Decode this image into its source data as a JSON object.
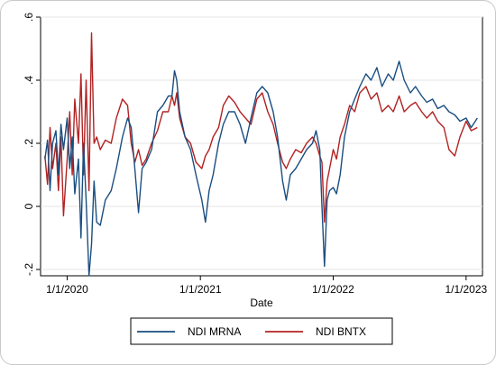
{
  "chart_data": {
    "type": "line",
    "xlabel": "Date",
    "ylabel": "",
    "x_range": [
      "2019-10-20",
      "2023-02-15"
    ],
    "ylim": [
      -0.22,
      0.6
    ],
    "x_ticks": [
      "1/1/2020",
      "1/1/2021",
      "1/1/2022",
      "1/1/2023"
    ],
    "y_ticks": [
      {
        "value": -0.2,
        "label": "-.2"
      },
      {
        "value": 0,
        "label": "0"
      },
      {
        "value": 0.2,
        "label": ".2"
      },
      {
        "value": 0.4,
        "label": ".4"
      },
      {
        "value": 0.6,
        "label": ".6"
      }
    ],
    "grid": "horizontal",
    "legend_position": "bottom",
    "series": [
      {
        "name": "NDI MRNA",
        "color": "#1a4e80",
        "points": [
          [
            "2019-11-01",
            0.15
          ],
          [
            "2019-11-08",
            0.21
          ],
          [
            "2019-11-15",
            0.05
          ],
          [
            "2019-11-22",
            0.2
          ],
          [
            "2019-12-01",
            0.24
          ],
          [
            "2019-12-08",
            0.1
          ],
          [
            "2019-12-15",
            0.26
          ],
          [
            "2019-12-22",
            0.18
          ],
          [
            "2020-01-01",
            0.28
          ],
          [
            "2020-01-08",
            0.12
          ],
          [
            "2020-01-15",
            0.22
          ],
          [
            "2020-01-22",
            0.04
          ],
          [
            "2020-02-01",
            0.15
          ],
          [
            "2020-02-08",
            -0.1
          ],
          [
            "2020-02-15",
            0.2
          ],
          [
            "2020-02-22",
            0.02
          ],
          [
            "2020-03-01",
            -0.22
          ],
          [
            "2020-03-08",
            -0.12
          ],
          [
            "2020-03-15",
            0.08
          ],
          [
            "2020-03-22",
            -0.05
          ],
          [
            "2020-04-01",
            -0.06
          ],
          [
            "2020-04-15",
            0.02
          ],
          [
            "2020-05-01",
            0.05
          ],
          [
            "2020-05-15",
            0.12
          ],
          [
            "2020-06-01",
            0.22
          ],
          [
            "2020-06-15",
            0.28
          ],
          [
            "2020-06-25",
            0.25
          ],
          [
            "2020-07-05",
            0.12
          ],
          [
            "2020-07-15",
            -0.02
          ],
          [
            "2020-07-25",
            0.12
          ],
          [
            "2020-08-05",
            0.14
          ],
          [
            "2020-08-20",
            0.18
          ],
          [
            "2020-09-05",
            0.3
          ],
          [
            "2020-09-20",
            0.32
          ],
          [
            "2020-10-05",
            0.35
          ],
          [
            "2020-10-15",
            0.35
          ],
          [
            "2020-10-22",
            0.43
          ],
          [
            "2020-10-28",
            0.4
          ],
          [
            "2020-11-05",
            0.3
          ],
          [
            "2020-11-20",
            0.22
          ],
          [
            "2020-12-05",
            0.18
          ],
          [
            "2020-12-20",
            0.1
          ],
          [
            "2021-01-05",
            0.02
          ],
          [
            "2021-01-15",
            -0.05
          ],
          [
            "2021-01-25",
            0.05
          ],
          [
            "2021-02-05",
            0.1
          ],
          [
            "2021-02-20",
            0.2
          ],
          [
            "2021-03-05",
            0.26
          ],
          [
            "2021-03-20",
            0.3
          ],
          [
            "2021-04-05",
            0.3
          ],
          [
            "2021-04-20",
            0.26
          ],
          [
            "2021-05-05",
            0.2
          ],
          [
            "2021-05-20",
            0.28
          ],
          [
            "2021-06-05",
            0.36
          ],
          [
            "2021-06-20",
            0.38
          ],
          [
            "2021-07-05",
            0.36
          ],
          [
            "2021-07-20",
            0.3
          ],
          [
            "2021-08-01",
            0.22
          ],
          [
            "2021-08-15",
            0.08
          ],
          [
            "2021-08-25",
            0.02
          ],
          [
            "2021-09-05",
            0.1
          ],
          [
            "2021-09-20",
            0.12
          ],
          [
            "2021-10-05",
            0.15
          ],
          [
            "2021-10-20",
            0.18
          ],
          [
            "2021-11-05",
            0.2
          ],
          [
            "2021-11-15",
            0.24
          ],
          [
            "2021-11-25",
            0.18
          ],
          [
            "2021-12-01",
            0.0
          ],
          [
            "2021-12-08",
            -0.19
          ],
          [
            "2021-12-15",
            0.02
          ],
          [
            "2021-12-22",
            0.05
          ],
          [
            "2022-01-01",
            0.06
          ],
          [
            "2022-01-10",
            0.04
          ],
          [
            "2022-01-20",
            0.1
          ],
          [
            "2022-02-01",
            0.22
          ],
          [
            "2022-02-15",
            0.3
          ],
          [
            "2022-03-01",
            0.34
          ],
          [
            "2022-03-15",
            0.38
          ],
          [
            "2022-04-01",
            0.42
          ],
          [
            "2022-04-15",
            0.4
          ],
          [
            "2022-05-01",
            0.44
          ],
          [
            "2022-05-15",
            0.38
          ],
          [
            "2022-06-01",
            0.42
          ],
          [
            "2022-06-15",
            0.4
          ],
          [
            "2022-07-01",
            0.46
          ],
          [
            "2022-07-15",
            0.4
          ],
          [
            "2022-08-01",
            0.36
          ],
          [
            "2022-08-15",
            0.38
          ],
          [
            "2022-09-01",
            0.35
          ],
          [
            "2022-09-15",
            0.33
          ],
          [
            "2022-10-01",
            0.34
          ],
          [
            "2022-10-15",
            0.31
          ],
          [
            "2022-11-01",
            0.32
          ],
          [
            "2022-11-15",
            0.3
          ],
          [
            "2022-12-01",
            0.29
          ],
          [
            "2022-12-15",
            0.27
          ],
          [
            "2023-01-01",
            0.28
          ],
          [
            "2023-01-15",
            0.25
          ],
          [
            "2023-02-01",
            0.28
          ]
        ]
      },
      {
        "name": "NDI BNTX",
        "color": "#b22222",
        "points": [
          [
            "2019-11-01",
            0.16
          ],
          [
            "2019-11-08",
            0.07
          ],
          [
            "2019-11-15",
            0.25
          ],
          [
            "2019-11-22",
            0.12
          ],
          [
            "2019-12-01",
            0.2
          ],
          [
            "2019-12-08",
            0.05
          ],
          [
            "2019-12-15",
            0.22
          ],
          [
            "2019-12-22",
            -0.03
          ],
          [
            "2020-01-01",
            0.15
          ],
          [
            "2020-01-08",
            0.3
          ],
          [
            "2020-01-15",
            0.1
          ],
          [
            "2020-01-22",
            0.34
          ],
          [
            "2020-02-01",
            0.2
          ],
          [
            "2020-02-08",
            0.42
          ],
          [
            "2020-02-15",
            0.1
          ],
          [
            "2020-02-22",
            0.4
          ],
          [
            "2020-03-01",
            0.05
          ],
          [
            "2020-03-08",
            0.55
          ],
          [
            "2020-03-15",
            0.2
          ],
          [
            "2020-03-22",
            0.22
          ],
          [
            "2020-04-01",
            0.18
          ],
          [
            "2020-04-15",
            0.21
          ],
          [
            "2020-05-01",
            0.2
          ],
          [
            "2020-05-15",
            0.28
          ],
          [
            "2020-06-01",
            0.34
          ],
          [
            "2020-06-15",
            0.32
          ],
          [
            "2020-06-25",
            0.2
          ],
          [
            "2020-07-05",
            0.14
          ],
          [
            "2020-07-15",
            0.18
          ],
          [
            "2020-07-25",
            0.13
          ],
          [
            "2020-08-05",
            0.15
          ],
          [
            "2020-08-20",
            0.2
          ],
          [
            "2020-09-05",
            0.24
          ],
          [
            "2020-09-20",
            0.3
          ],
          [
            "2020-10-05",
            0.3
          ],
          [
            "2020-10-15",
            0.35
          ],
          [
            "2020-10-22",
            0.32
          ],
          [
            "2020-10-28",
            0.36
          ],
          [
            "2020-11-05",
            0.28
          ],
          [
            "2020-11-20",
            0.22
          ],
          [
            "2020-12-05",
            0.2
          ],
          [
            "2020-12-20",
            0.14
          ],
          [
            "2021-01-05",
            0.12
          ],
          [
            "2021-01-15",
            0.16
          ],
          [
            "2021-01-25",
            0.18
          ],
          [
            "2021-02-05",
            0.22
          ],
          [
            "2021-02-20",
            0.25
          ],
          [
            "2021-03-05",
            0.32
          ],
          [
            "2021-03-20",
            0.35
          ],
          [
            "2021-04-05",
            0.33
          ],
          [
            "2021-04-20",
            0.3
          ],
          [
            "2021-05-05",
            0.28
          ],
          [
            "2021-05-20",
            0.26
          ],
          [
            "2021-06-05",
            0.34
          ],
          [
            "2021-06-20",
            0.36
          ],
          [
            "2021-07-05",
            0.3
          ],
          [
            "2021-07-20",
            0.26
          ],
          [
            "2021-08-01",
            0.2
          ],
          [
            "2021-08-15",
            0.14
          ],
          [
            "2021-08-25",
            0.12
          ],
          [
            "2021-09-05",
            0.15
          ],
          [
            "2021-09-20",
            0.18
          ],
          [
            "2021-10-05",
            0.17
          ],
          [
            "2021-10-20",
            0.2
          ],
          [
            "2021-11-05",
            0.22
          ],
          [
            "2021-11-15",
            0.2
          ],
          [
            "2021-11-25",
            0.16
          ],
          [
            "2021-12-01",
            0.14
          ],
          [
            "2021-12-08",
            -0.05
          ],
          [
            "2021-12-15",
            0.08
          ],
          [
            "2021-12-22",
            0.12
          ],
          [
            "2022-01-01",
            0.18
          ],
          [
            "2022-01-10",
            0.15
          ],
          [
            "2022-01-20",
            0.22
          ],
          [
            "2022-02-01",
            0.26
          ],
          [
            "2022-02-15",
            0.32
          ],
          [
            "2022-03-01",
            0.3
          ],
          [
            "2022-03-15",
            0.36
          ],
          [
            "2022-04-01",
            0.38
          ],
          [
            "2022-04-15",
            0.34
          ],
          [
            "2022-05-01",
            0.36
          ],
          [
            "2022-05-15",
            0.3
          ],
          [
            "2022-06-01",
            0.32
          ],
          [
            "2022-06-15",
            0.3
          ],
          [
            "2022-07-01",
            0.35
          ],
          [
            "2022-07-15",
            0.3
          ],
          [
            "2022-08-01",
            0.32
          ],
          [
            "2022-08-15",
            0.33
          ],
          [
            "2022-09-01",
            0.3
          ],
          [
            "2022-09-15",
            0.28
          ],
          [
            "2022-10-01",
            0.3
          ],
          [
            "2022-10-15",
            0.27
          ],
          [
            "2022-11-01",
            0.25
          ],
          [
            "2022-11-15",
            0.18
          ],
          [
            "2022-12-01",
            0.16
          ],
          [
            "2022-12-15",
            0.22
          ],
          [
            "2023-01-01",
            0.27
          ],
          [
            "2023-01-15",
            0.24
          ],
          [
            "2023-02-01",
            0.25
          ]
        ]
      }
    ]
  }
}
